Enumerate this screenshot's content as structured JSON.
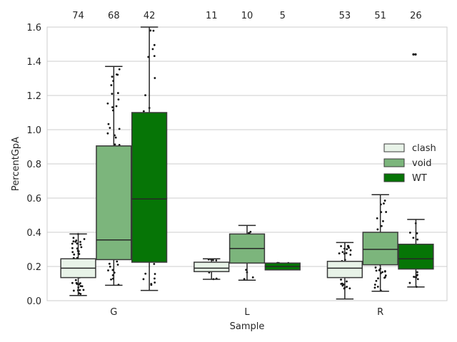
{
  "chart_data": {
    "type": "box",
    "xlabel": "Sample",
    "ylabel": "PercentGpA",
    "ylim": [
      0,
      1.6
    ],
    "yticks": [
      "0.0",
      "0.2",
      "0.4",
      "0.6",
      "0.8",
      "1.0",
      "1.2",
      "1.4",
      "1.6"
    ],
    "grid": "horizontal",
    "legend_position": "right",
    "categories": [
      "G",
      "L",
      "R"
    ],
    "series": [
      {
        "name": "clash",
        "color": "#e8f3e8",
        "boxes": [
          {
            "category": "G",
            "n": "74",
            "whisker_low": 0.03,
            "q1": 0.135,
            "median": 0.19,
            "q3": 0.245,
            "whisker_high": 0.39
          },
          {
            "category": "L",
            "n": "11",
            "whisker_low": 0.125,
            "q1": 0.17,
            "median": 0.19,
            "q3": 0.225,
            "whisker_high": 0.245
          },
          {
            "category": "R",
            "n": "53",
            "whisker_low": 0.01,
            "q1": 0.135,
            "median": 0.19,
            "q3": 0.23,
            "whisker_high": 0.34
          }
        ]
      },
      {
        "name": "void",
        "color": "#7cb57c",
        "boxes": [
          {
            "category": "G",
            "n": "68",
            "whisker_low": 0.09,
            "q1": 0.24,
            "median": 0.355,
            "q3": 0.905,
            "whisker_high": 1.37
          },
          {
            "category": "L",
            "n": "10",
            "whisker_low": 0.12,
            "q1": 0.22,
            "median": 0.305,
            "q3": 0.39,
            "whisker_high": 0.44
          },
          {
            "category": "R",
            "n": "51",
            "whisker_low": 0.055,
            "q1": 0.21,
            "median": 0.3,
            "q3": 0.4,
            "whisker_high": 0.62
          }
        ]
      },
      {
        "name": "WT",
        "color": "#067506",
        "boxes": [
          {
            "category": "G",
            "n": "42",
            "whisker_low": 0.06,
            "q1": 0.225,
            "median": 0.595,
            "q3": 1.1,
            "whisker_high": 1.6
          },
          {
            "category": "L",
            "n": "5",
            "whisker_low": 0.18,
            "q1": 0.18,
            "median": 0.2,
            "q3": 0.22,
            "whisker_high": 0.22
          },
          {
            "category": "R",
            "n": "26",
            "whisker_low": 0.08,
            "q1": 0.185,
            "median": 0.245,
            "q3": 0.33,
            "whisker_high": 0.475
          }
        ]
      }
    ]
  }
}
